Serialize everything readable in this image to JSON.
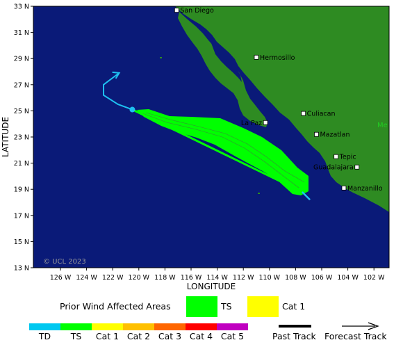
{
  "map": {
    "lat_ticks": [
      "33 N",
      "31 N",
      "29 N",
      "27 N",
      "25 N",
      "23 N",
      "21 N",
      "19 N",
      "17 N",
      "15 N",
      "13 N"
    ],
    "lon_ticks": [
      "126 W",
      "124 W",
      "122 W",
      "120 W",
      "118 W",
      "116 W",
      "114 W",
      "112 W",
      "110 W",
      "108 W",
      "106 W",
      "104 W",
      "102 W"
    ],
    "xlabel": "LONGITUDE",
    "ylabel": "LATITUDE",
    "copyright": "© UCL 2023",
    "cities": [
      {
        "name": "San Diego",
        "lat": 32.7,
        "lon": -117.1
      },
      {
        "name": "Hermosillo",
        "lat": 29.1,
        "lon": -111.0
      },
      {
        "name": "Culiacan",
        "lat": 24.8,
        "lon": -107.4
      },
      {
        "name": "La Paz",
        "lat": 24.1,
        "lon": -110.3
      },
      {
        "name": "Mazatlan",
        "lat": 23.2,
        "lon": -106.4
      },
      {
        "name": "Tepic",
        "lat": 21.5,
        "lon": -104.9
      },
      {
        "name": "Guadalajara",
        "lat": 20.7,
        "lon": -103.3
      },
      {
        "name": "Manzanillo",
        "lat": 19.1,
        "lon": -104.3
      }
    ],
    "partial_label": "Me",
    "colors": {
      "ocean": "#0a1a78",
      "land": "#2e8b22",
      "ts": "#00ff00",
      "track": "#1ec0f0"
    }
  },
  "track": {
    "past_point": {
      "lat": 25.1,
      "lon": -120.5
    },
    "forecast": [
      {
        "lat": 25.1,
        "lon": -120.5
      },
      {
        "lat": 25.5,
        "lon": -121.6
      },
      {
        "lat": 26.2,
        "lon": -122.7
      },
      {
        "lat": 27.0,
        "lon": -122.7
      },
      {
        "lat": 27.9,
        "lon": -121.5
      }
    ],
    "ts_segment": [
      {
        "lat": 25.1,
        "lon": -120.5
      },
      {
        "lat": 18.8,
        "lon": -107.5
      }
    ],
    "cat_end": {
      "lat": 18.2,
      "lon": -106.9
    }
  },
  "legend": {
    "prior_label": "Prior Wind Affected Areas",
    "ts_label": "TS",
    "cat1_label": "Cat 1",
    "scale": [
      "TD",
      "TS",
      "Cat 1",
      "Cat 2",
      "Cat 3",
      "Cat 4",
      "Cat 5"
    ],
    "scale_colors": [
      "#00c8f0",
      "#00ff00",
      "#ffff00",
      "#ffc000",
      "#ff6600",
      "#ff0000",
      "#c000c0"
    ],
    "past_track": "Past Track",
    "forecast_track": "Forecast Track",
    "swatch_colors": {
      "ts": "#00ff00",
      "cat1": "#ffff00"
    }
  }
}
